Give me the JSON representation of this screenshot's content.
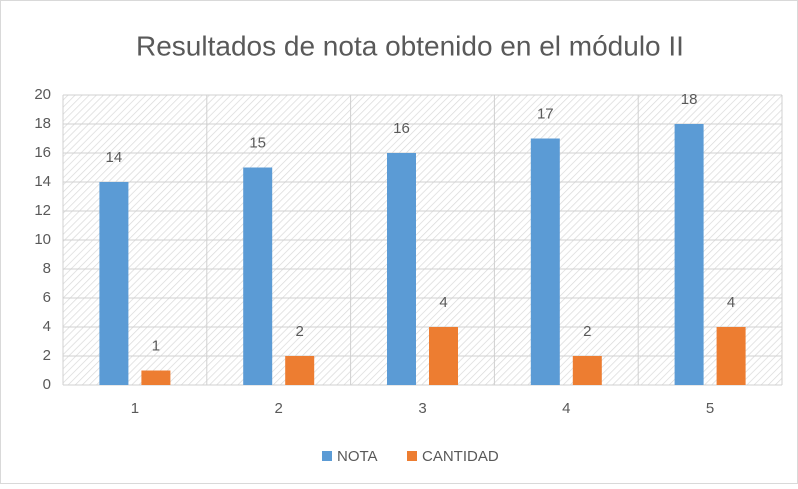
{
  "chart_data": {
    "type": "bar",
    "title": "Resultados de nota obtenido en el módulo II",
    "categories": [
      "1",
      "2",
      "3",
      "4",
      "5"
    ],
    "series": [
      {
        "name": "NOTA",
        "color": "#5b9bd5",
        "values": [
          14,
          15,
          16,
          17,
          18
        ]
      },
      {
        "name": "CANTIDAD",
        "color": "#ed7d31",
        "values": [
          1,
          2,
          4,
          2,
          4
        ]
      }
    ],
    "ylim": [
      0,
      20
    ],
    "yticks": [
      0,
      2,
      4,
      6,
      8,
      10,
      12,
      14,
      16,
      18,
      20
    ],
    "grid": true,
    "data_labels": true,
    "legend": "bottom"
  }
}
